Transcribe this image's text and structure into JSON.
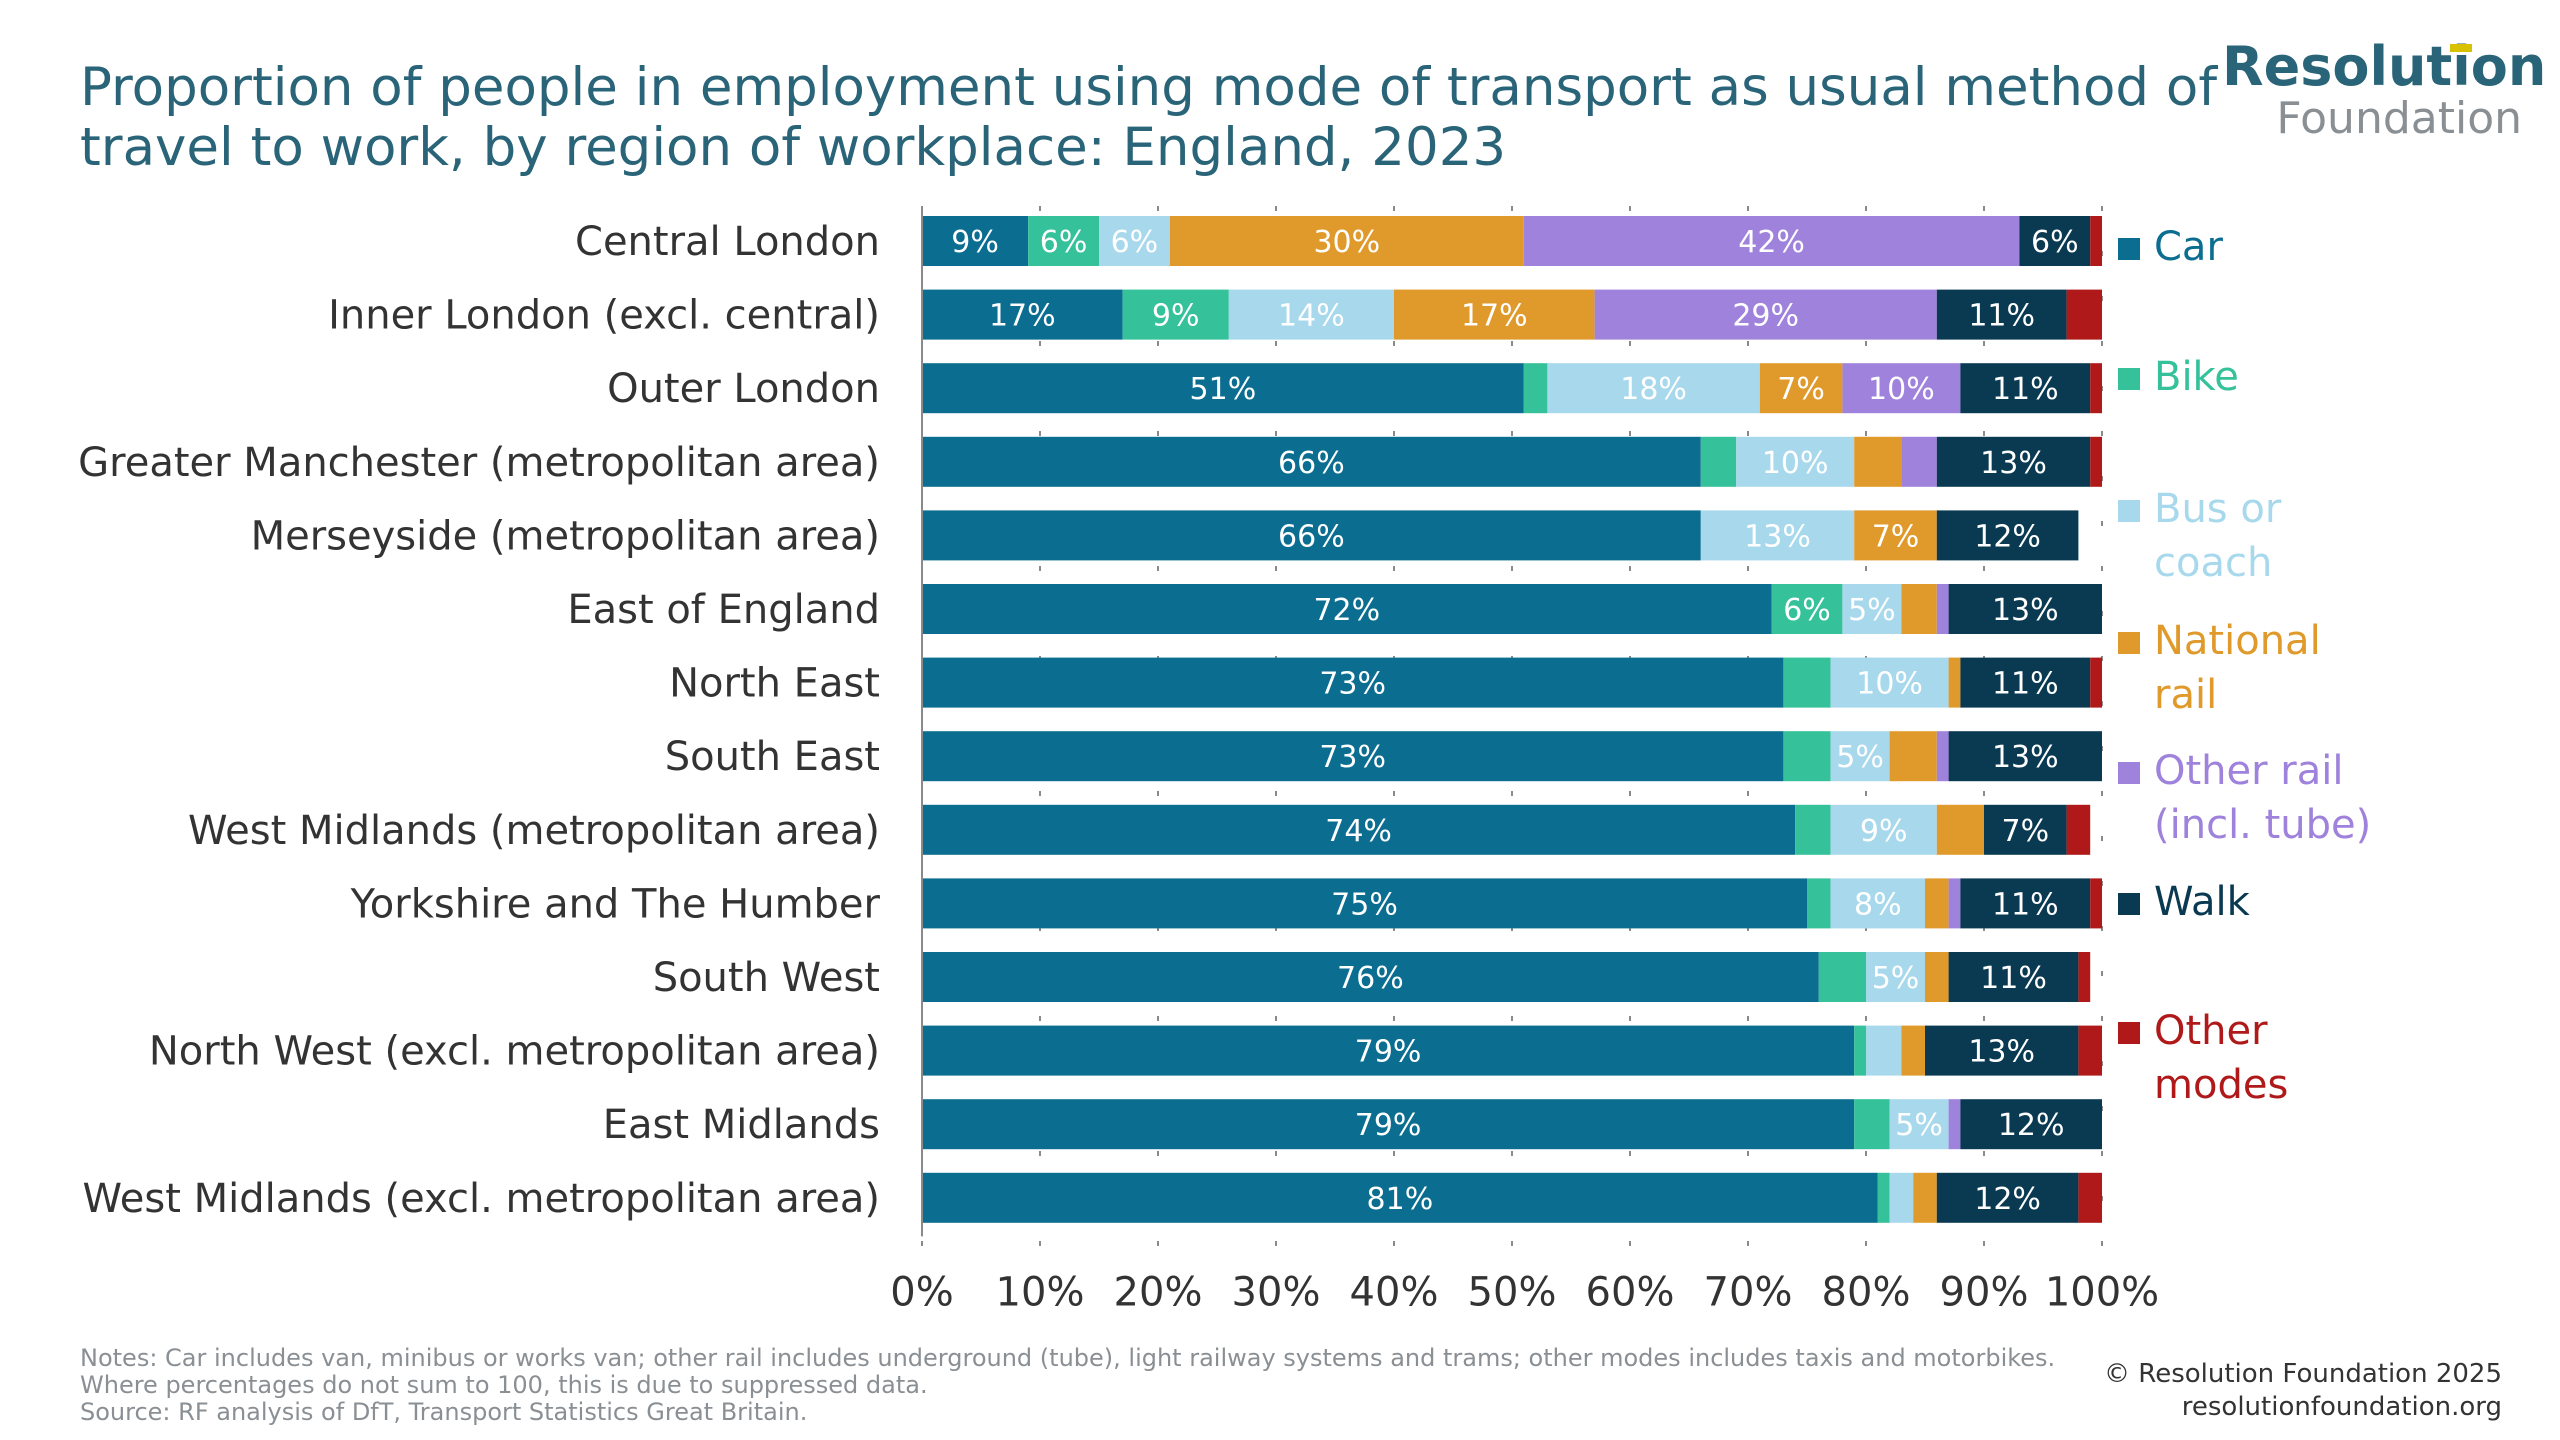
{
  "title": "Proportion of people in employment using mode of transport as usual method of travel to work, by region of workplace: England, 2023",
  "logo": {
    "line1": "Resolution",
    "line2": "Foundation"
  },
  "notes": "Notes: Car includes van, minibus or works van; other rail includes underground (tube), light railway systems and trams; other modes includes taxis and motorbikes. Where percentages do not sum to 100, this is due to suppressed data.",
  "source": "Source: RF analysis of DfT, Transport Statistics Great Britain.",
  "copyright": "© Resolution Foundation 2025",
  "website": "resolutionfoundation.org",
  "chart_data": {
    "type": "bar",
    "orientation": "horizontal",
    "stacked": true,
    "categories": [
      "Central London",
      "Inner London (excl. central)",
      "Outer London",
      "Greater Manchester (metropolitan area)",
      "Merseyside (metropolitan area)",
      "East of England",
      "North East",
      "South East",
      "West Midlands (metropolitan area)",
      "Yorkshire and The Humber",
      "South West",
      "North West (excl. metropolitan area)",
      "East Midlands",
      "West Midlands (excl. metropolitan area)"
    ],
    "series": [
      {
        "name": "Car",
        "color": "#0b6e91",
        "label_color": "#ffffff",
        "values": [
          9,
          17,
          51,
          66,
          66,
          72,
          73,
          73,
          74,
          75,
          76,
          79,
          79,
          81
        ]
      },
      {
        "name": "Bike",
        "color": "#35c19a",
        "label_color": "#ffffff",
        "values": [
          6,
          9,
          2,
          3,
          0,
          6,
          4,
          4,
          3,
          2,
          4,
          1,
          3,
          1
        ]
      },
      {
        "name": "Bus or coach",
        "color": "#a8d8ec",
        "label_color": "#ffffff",
        "values": [
          6,
          14,
          18,
          10,
          13,
          5,
          10,
          5,
          9,
          8,
          5,
          3,
          5,
          2
        ]
      },
      {
        "name": "National rail",
        "color": "#e09a2b",
        "label_color": "#ffffff",
        "values": [
          30,
          17,
          7,
          4,
          7,
          3,
          1,
          4,
          4,
          2,
          2,
          2,
          0,
          2
        ]
      },
      {
        "name": "Other rail (incl. tube)",
        "color": "#9f82dc",
        "label_color": "#ffffff",
        "values": [
          42,
          29,
          10,
          3,
          0,
          1,
          0,
          1,
          0,
          1,
          0,
          0,
          1,
          0
        ]
      },
      {
        "name": "Walk",
        "color": "#0a3a52",
        "label_color": "#ffffff",
        "values": [
          6,
          11,
          11,
          13,
          12,
          13,
          11,
          13,
          7,
          11,
          11,
          13,
          12,
          12
        ]
      },
      {
        "name": "Other modes",
        "color": "#b01919",
        "label_color": "#ffffff",
        "values": [
          1,
          3,
          1,
          1,
          0,
          0,
          1,
          0,
          2,
          1,
          1,
          2,
          0,
          2
        ]
      }
    ],
    "data_labels": [
      [
        "9%",
        "6%",
        "6%",
        "30%",
        "42%",
        "6%",
        ""
      ],
      [
        "17%",
        "9%",
        "14%",
        "17%",
        "29%",
        "11%",
        ""
      ],
      [
        "51%",
        "",
        "18%",
        "7%",
        "10%",
        "11%",
        ""
      ],
      [
        "66%",
        "",
        "10%",
        "",
        "",
        "13%",
        ""
      ],
      [
        "66%",
        "",
        "13%",
        "7%",
        "",
        "12%",
        ""
      ],
      [
        "72%",
        "6%",
        "5%",
        "",
        "",
        "13%",
        ""
      ],
      [
        "73%",
        "",
        "10%",
        "",
        "",
        "11%",
        ""
      ],
      [
        "73%",
        "",
        "5%",
        "",
        "",
        "13%",
        ""
      ],
      [
        "74%",
        "",
        "9%",
        "",
        "",
        "7%",
        ""
      ],
      [
        "75%",
        "",
        "8%",
        "",
        "",
        "11%",
        ""
      ],
      [
        "76%",
        "",
        "5%",
        "",
        "",
        "11%",
        ""
      ],
      [
        "79%",
        "",
        "",
        "",
        "",
        "13%",
        ""
      ],
      [
        "79%",
        "",
        "5%",
        "",
        "",
        "12%",
        ""
      ],
      [
        "81%",
        "",
        "",
        "",
        "",
        "12%",
        ""
      ]
    ],
    "x_ticks": [
      "0%",
      "10%",
      "20%",
      "30%",
      "40%",
      "50%",
      "60%",
      "70%",
      "80%",
      "90%",
      "100%"
    ],
    "xlim": [
      0,
      100
    ],
    "legend": [
      {
        "label": "Car",
        "color": "#0b6e91"
      },
      {
        "label": "Bike",
        "color": "#35c19a"
      },
      {
        "label": "Bus or coach",
        "color": "#a8d8ec"
      },
      {
        "label": "National rail",
        "color": "#e09a2b"
      },
      {
        "label": "Other rail (incl. tube)",
        "color": "#9f82dc"
      },
      {
        "label": "Walk",
        "color": "#0a3a52"
      },
      {
        "label": "Other modes",
        "color": "#b01919"
      }
    ],
    "legend_position": "right",
    "grid": "vertical dashed"
  }
}
